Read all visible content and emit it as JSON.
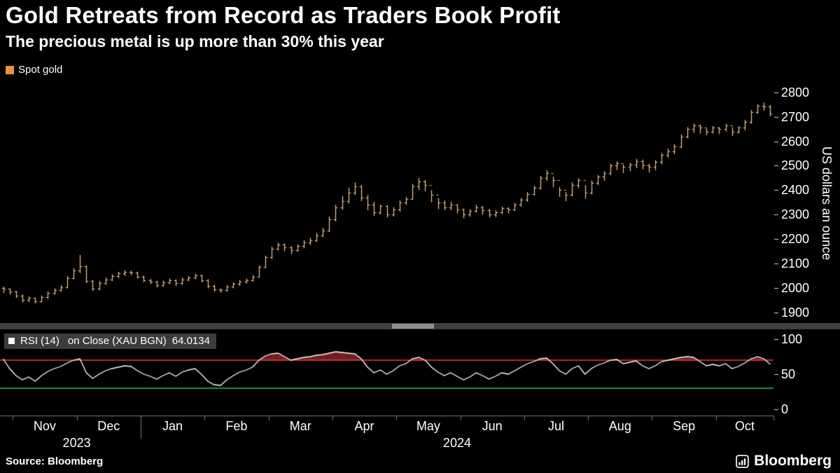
{
  "header": {
    "title": "Gold Retreats from Record as Traders Book Profit",
    "subtitle": "The precious metal is up more than 30% this year"
  },
  "legend": {
    "label": "Spot gold",
    "swatch_color": "#ef9138"
  },
  "rsi_label": {
    "name": "RSI (14)",
    "detail": "on Close (XAU BGN)",
    "value": "64.0134"
  },
  "y_axis": {
    "unit": "US dollars an ounce"
  },
  "footer": {
    "source": "Source: Bloomberg",
    "logo": "Bloomberg"
  },
  "chart_data": [
    {
      "type": "ohlc",
      "name": "Spot gold",
      "ylabel": "US dollars an ounce",
      "ylim": [
        1870,
        2840
      ],
      "yticks": [
        1900,
        2000,
        2100,
        2200,
        2300,
        2400,
        2500,
        2600,
        2700,
        2800
      ],
      "months": [
        "Nov",
        "Dec",
        "Jan",
        "Feb",
        "Mar",
        "Apr",
        "May",
        "Jun",
        "Jul",
        "Aug",
        "Sep",
        "Oct"
      ],
      "years": [
        "2023",
        "2024"
      ],
      "bar_color": "#f9c88e",
      "bars_hlc": [
        [
          2005,
          1978,
          1995
        ],
        [
          1998,
          1972,
          1985
        ],
        [
          1988,
          1958,
          1968
        ],
        [
          1972,
          1940,
          1950
        ],
        [
          1965,
          1942,
          1958
        ],
        [
          1960,
          1936,
          1945
        ],
        [
          1968,
          1940,
          1962
        ],
        [
          1985,
          1955,
          1978
        ],
        [
          1998,
          1972,
          1990
        ],
        [
          2010,
          1984,
          2002
        ],
        [
          2048,
          1998,
          2040
        ],
        [
          2080,
          2035,
          2072
        ],
        [
          2135,
          2060,
          2088
        ],
        [
          2092,
          2020,
          2028
        ],
        [
          2032,
          1988,
          1995
        ],
        [
          2028,
          1990,
          2020
        ],
        [
          2042,
          2012,
          2035
        ],
        [
          2055,
          2028,
          2048
        ],
        [
          2065,
          2040,
          2058
        ],
        [
          2072,
          2048,
          2065
        ],
        [
          2070,
          2052,
          2062
        ],
        [
          2066,
          2038,
          2045
        ],
        [
          2050,
          2022,
          2030
        ],
        [
          2036,
          2014,
          2025
        ],
        [
          2028,
          2002,
          2012
        ],
        [
          2030,
          2005,
          2022
        ],
        [
          2038,
          2015,
          2030
        ],
        [
          2034,
          2008,
          2018
        ],
        [
          2042,
          2012,
          2035
        ],
        [
          2048,
          2028,
          2042
        ],
        [
          2058,
          2035,
          2050
        ],
        [
          2054,
          2022,
          2030
        ],
        [
          2035,
          1998,
          2008
        ],
        [
          2012,
          1984,
          1992
        ],
        [
          1998,
          1980,
          1990
        ],
        [
          2010,
          1984,
          2005
        ],
        [
          2022,
          1998,
          2015
        ],
        [
          2032,
          2008,
          2025
        ],
        [
          2038,
          2018,
          2032
        ],
        [
          2052,
          2026,
          2045
        ],
        [
          2092,
          2042,
          2085
        ],
        [
          2132,
          2080,
          2125
        ],
        [
          2168,
          2118,
          2160
        ],
        [
          2185,
          2152,
          2178
        ],
        [
          2182,
          2150,
          2165
        ],
        [
          2170,
          2138,
          2155
        ],
        [
          2178,
          2148,
          2170
        ],
        [
          2195,
          2162,
          2185
        ],
        [
          2205,
          2175,
          2195
        ],
        [
          2225,
          2188,
          2215
        ],
        [
          2245,
          2208,
          2235
        ],
        [
          2292,
          2228,
          2280
        ],
        [
          2340,
          2272,
          2330
        ],
        [
          2375,
          2320,
          2355
        ],
        [
          2410,
          2345,
          2390
        ],
        [
          2432,
          2380,
          2415
        ],
        [
          2420,
          2355,
          2370
        ],
        [
          2380,
          2318,
          2340
        ],
        [
          2352,
          2295,
          2310
        ],
        [
          2340,
          2300,
          2335
        ],
        [
          2338,
          2288,
          2300
        ],
        [
          2330,
          2292,
          2320
        ],
        [
          2358,
          2312,
          2350
        ],
        [
          2372,
          2340,
          2365
        ],
        [
          2425,
          2360,
          2415
        ],
        [
          2450,
          2400,
          2435
        ],
        [
          2442,
          2395,
          2420
        ],
        [
          2400,
          2350,
          2380
        ],
        [
          2368,
          2322,
          2350
        ],
        [
          2358,
          2318,
          2330
        ],
        [
          2352,
          2318,
          2340
        ],
        [
          2342,
          2305,
          2320
        ],
        [
          2325,
          2285,
          2300
        ],
        [
          2322,
          2292,
          2315
        ],
        [
          2340,
          2308,
          2330
        ],
        [
          2335,
          2300,
          2318
        ],
        [
          2322,
          2288,
          2300
        ],
        [
          2318,
          2290,
          2310
        ],
        [
          2332,
          2302,
          2325
        ],
        [
          2330,
          2305,
          2320
        ],
        [
          2348,
          2315,
          2340
        ],
        [
          2368,
          2332,
          2360
        ],
        [
          2392,
          2352,
          2385
        ],
        [
          2418,
          2378,
          2410
        ],
        [
          2458,
          2402,
          2450
        ],
        [
          2482,
          2438,
          2470
        ],
        [
          2455,
          2412,
          2440
        ],
        [
          2412,
          2372,
          2400
        ],
        [
          2392,
          2355,
          2380
        ],
        [
          2432,
          2375,
          2420
        ],
        [
          2448,
          2408,
          2440
        ],
        [
          2420,
          2365,
          2390
        ],
        [
          2440,
          2382,
          2430
        ],
        [
          2462,
          2420,
          2455
        ],
        [
          2478,
          2438,
          2470
        ],
        [
          2508,
          2462,
          2500
        ],
        [
          2518,
          2482,
          2510
        ],
        [
          2505,
          2470,
          2495
        ],
        [
          2512,
          2478,
          2505
        ],
        [
          2528,
          2490,
          2520
        ],
        [
          2525,
          2485,
          2500
        ],
        [
          2508,
          2472,
          2495
        ],
        [
          2522,
          2482,
          2515
        ],
        [
          2552,
          2505,
          2545
        ],
        [
          2570,
          2532,
          2560
        ],
        [
          2588,
          2548,
          2580
        ],
        [
          2628,
          2572,
          2620
        ],
        [
          2658,
          2612,
          2650
        ],
        [
          2672,
          2635,
          2665
        ],
        [
          2668,
          2632,
          2655
        ],
        [
          2652,
          2625,
          2640
        ],
        [
          2662,
          2632,
          2655
        ],
        [
          2658,
          2630,
          2650
        ],
        [
          2672,
          2640,
          2665
        ],
        [
          2658,
          2622,
          2640
        ],
        [
          2662,
          2632,
          2655
        ],
        [
          2688,
          2645,
          2680
        ],
        [
          2728,
          2672,
          2720
        ],
        [
          2752,
          2712,
          2745
        ],
        [
          2758,
          2725,
          2742
        ],
        [
          2748,
          2702,
          2715
        ]
      ]
    },
    {
      "type": "line",
      "name": "RSI (14) on Close (XAU BGN)",
      "last_value": 64.0134,
      "ylim": [
        0,
        100
      ],
      "yticks": [
        0,
        50,
        100
      ],
      "overbought": 70,
      "oversold": 30,
      "line_color": "#ffffff",
      "overbought_line_color": "#f23a3a",
      "oversold_line_color": "#2db863",
      "overbought_fill_color": "#701f1f",
      "values": [
        72,
        58,
        48,
        42,
        46,
        40,
        48,
        54,
        58,
        61,
        66,
        70,
        72,
        52,
        44,
        50,
        55,
        58,
        60,
        62,
        61,
        55,
        50,
        47,
        43,
        48,
        52,
        47,
        53,
        56,
        58,
        50,
        40,
        35,
        34,
        42,
        48,
        53,
        56,
        60,
        70,
        76,
        79,
        80,
        75,
        70,
        72,
        74,
        75,
        77,
        78,
        80,
        82,
        81,
        80,
        79,
        72,
        60,
        52,
        56,
        50,
        55,
        62,
        65,
        72,
        74,
        70,
        60,
        53,
        48,
        52,
        47,
        42,
        46,
        52,
        48,
        43,
        47,
        52,
        50,
        55,
        60,
        65,
        68,
        72,
        73,
        65,
        55,
        50,
        58,
        62,
        50,
        58,
        63,
        66,
        70,
        71,
        65,
        67,
        69,
        62,
        58,
        62,
        68,
        70,
        72,
        74,
        75,
        74,
        68,
        62,
        64,
        62,
        65,
        58,
        61,
        66,
        72,
        75,
        72,
        64.0134
      ]
    }
  ]
}
